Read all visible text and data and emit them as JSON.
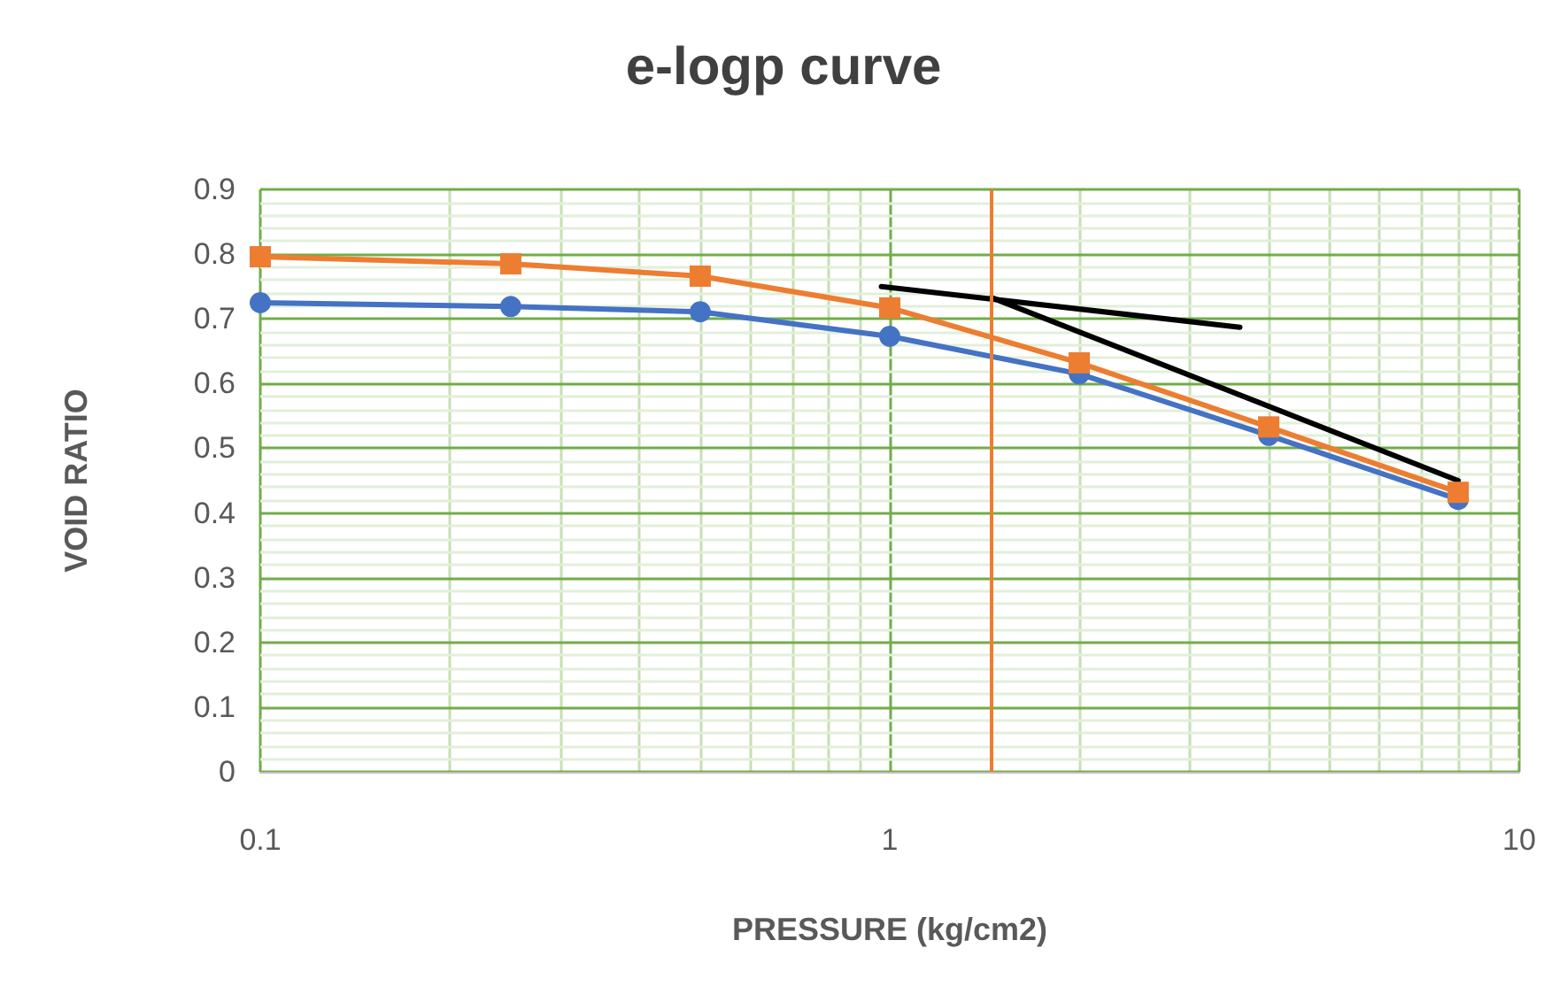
{
  "chart_data": {
    "type": "line",
    "title": "e-logp curve",
    "xlabel": "PRESSURE (kg/cm2)",
    "ylabel": "VOID RATIO",
    "x": [
      0.1,
      0.25,
      0.5,
      1,
      2,
      4,
      8
    ],
    "series": [
      {
        "color": "#4472c4",
        "marker": "circle",
        "values": [
          0.725,
          0.719,
          0.711,
          0.673,
          0.615,
          0.52,
          0.421
        ]
      },
      {
        "color": "#ed7d31",
        "marker": "square",
        "values": [
          0.796,
          0.785,
          0.766,
          0.717,
          0.632,
          0.533,
          0.432
        ]
      },
      {
        "color": "#000000",
        "marker": "none",
        "x": [
          0.97,
          3.6
        ],
        "values": [
          0.75,
          0.687
        ]
      },
      {
        "color": "#000000",
        "marker": "none",
        "x": [
          1.45,
          8
        ],
        "values": [
          0.733,
          0.45
        ]
      }
    ],
    "ref_lines": [
      {
        "axis": "x",
        "value": 1.45,
        "color": "#ed7d31"
      }
    ],
    "log": "x",
    "xlim": [
      0.1,
      10
    ],
    "xticks": [
      0.1,
      {
        "value": 0.2,
        "label": null
      },
      {
        "value": 0.3,
        "label": null
      },
      {
        "value": 0.4,
        "label": null
      },
      {
        "value": 0.5,
        "label": null
      },
      {
        "value": 0.6,
        "label": null
      },
      {
        "value": 0.7,
        "label": null
      },
      {
        "value": 0.8,
        "label": null
      },
      {
        "value": 0.9,
        "label": null
      },
      1,
      {
        "value": 2,
        "label": null
      },
      {
        "value": 3,
        "label": null
      },
      {
        "value": 4,
        "label": null
      },
      {
        "value": 5,
        "label": null
      },
      {
        "value": 6,
        "label": null
      },
      {
        "value": 7,
        "label": null
      },
      {
        "value": 8,
        "label": null
      },
      {
        "value": 9,
        "label": null
      },
      10
    ],
    "ylim": [
      0,
      0.9
    ],
    "yticks": [
      0,
      {
        "value": 0.02,
        "label": null
      },
      {
        "value": 0.04,
        "label": null
      },
      {
        "value": 0.06,
        "label": null
      },
      {
        "value": 0.08,
        "label": null
      },
      0.1,
      {
        "value": 0.12,
        "label": null
      },
      {
        "value": 0.14,
        "label": null
      },
      {
        "value": 0.16,
        "label": null
      },
      {
        "value": 0.18,
        "label": null
      },
      0.2,
      {
        "value": 0.22,
        "label": null
      },
      {
        "value": 0.24,
        "label": null
      },
      {
        "value": 0.26,
        "label": null
      },
      {
        "value": 0.28,
        "label": null
      },
      0.3,
      {
        "value": 0.32,
        "label": null
      },
      {
        "value": 0.34,
        "label": null
      },
      {
        "value": 0.36,
        "label": null
      },
      {
        "value": 0.38,
        "label": null
      },
      0.4,
      {
        "value": 0.42,
        "label": null
      },
      {
        "value": 0.44,
        "label": null
      },
      {
        "value": 0.46,
        "label": null
      },
      {
        "value": 0.48,
        "label": null
      },
      0.5,
      {
        "value": 0.52,
        "label": null
      },
      {
        "value": 0.54,
        "label": null
      },
      {
        "value": 0.56,
        "label": null
      },
      {
        "value": 0.58,
        "label": null
      },
      0.6,
      {
        "value": 0.62,
        "label": null
      },
      {
        "value": 0.64,
        "label": null
      },
      {
        "value": 0.66,
        "label": null
      },
      {
        "value": 0.68,
        "label": null
      },
      0.7,
      {
        "value": 0.72,
        "label": null
      },
      {
        "value": 0.74,
        "label": null
      },
      {
        "value": 0.76,
        "label": null
      },
      {
        "value": 0.78,
        "label": null
      },
      0.8,
      {
        "value": 0.82,
        "label": null
      },
      {
        "value": 0.84,
        "label": null
      },
      {
        "value": 0.86,
        "label": null
      },
      {
        "value": 0.88,
        "label": null
      },
      0.9
    ],
    "grid": true
  }
}
